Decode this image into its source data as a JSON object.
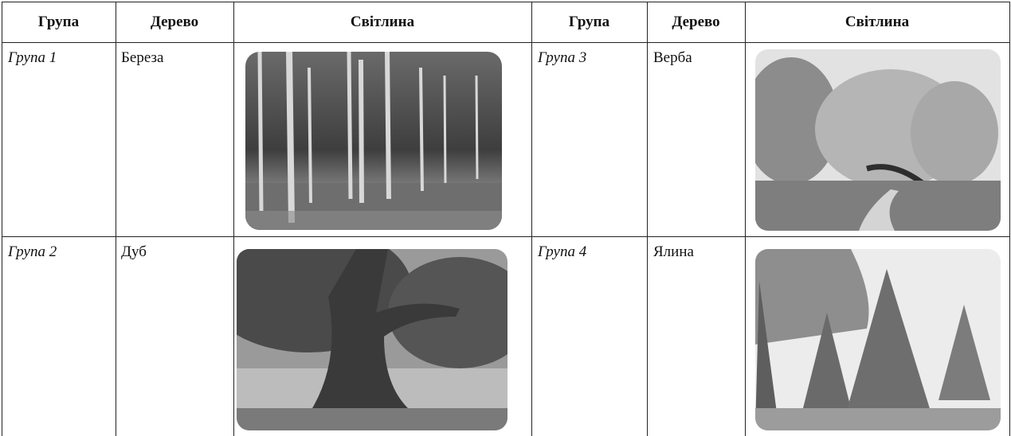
{
  "table": {
    "header": [
      "Група",
      "Дерево",
      "Світлина",
      "Група",
      "Дерево",
      "Світлина"
    ],
    "rows": [
      [
        "Група 1",
        "Береза",
        "Група 3",
        "Верба"
      ],
      [
        "Група 2",
        "Дуб",
        "Група 4",
        "Ялина"
      ]
    ]
  }
}
